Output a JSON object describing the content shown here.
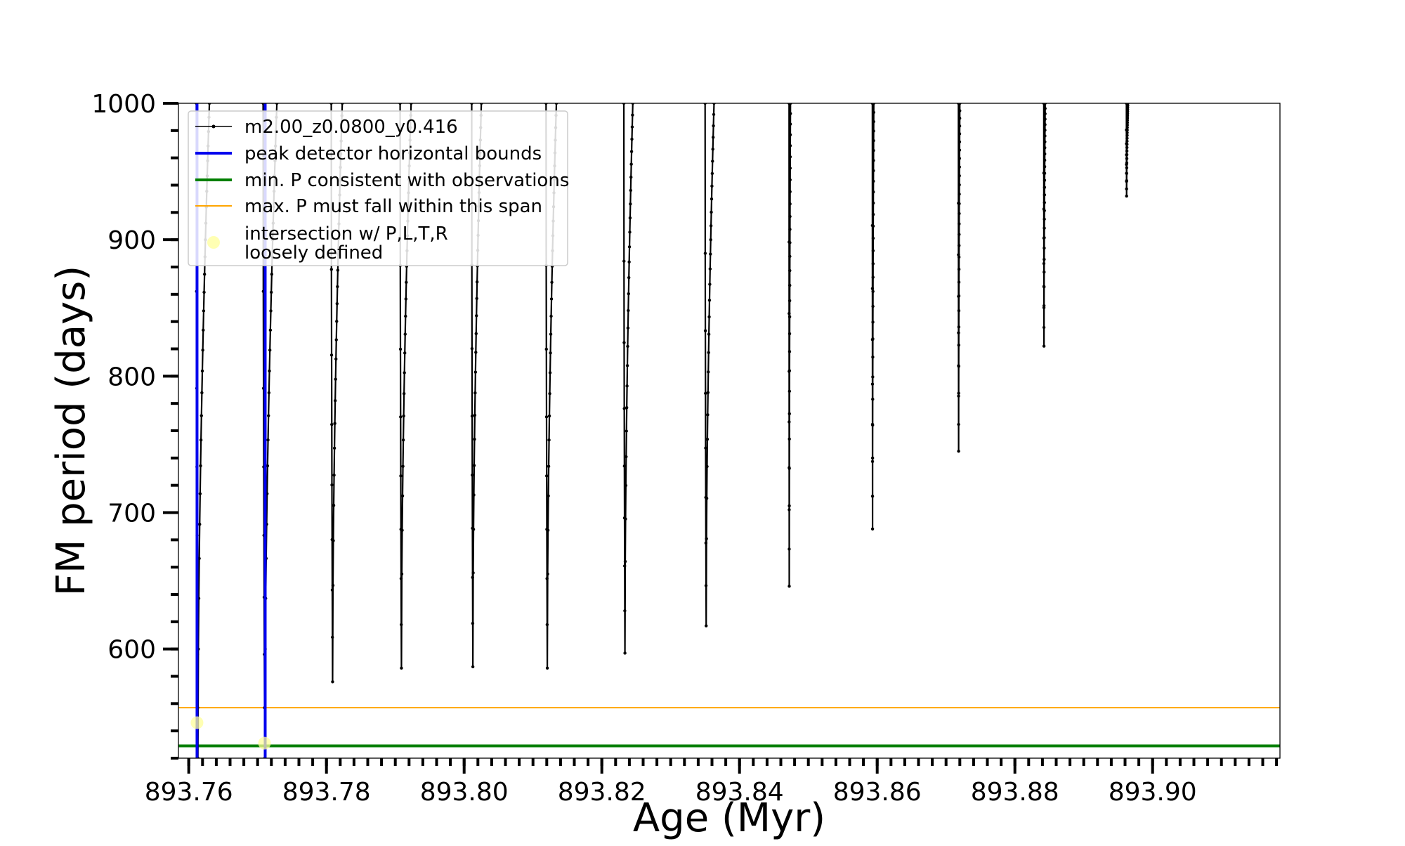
{
  "chart_data": {
    "type": "line",
    "title": "",
    "xlabel": "Age (Myr)",
    "ylabel": "FM period (days)",
    "xlim": [
      893.7585,
      893.9185
    ],
    "ylim": [
      520,
      1000
    ],
    "x_ticks": [
      893.76,
      893.78,
      893.8,
      893.82,
      893.84,
      893.86,
      893.88,
      893.9
    ],
    "x_tick_labels": [
      "893.76",
      "893.78",
      "893.80",
      "893.82",
      "893.84",
      "893.86",
      "893.88",
      "893.90"
    ],
    "y_ticks": [
      600,
      700,
      800,
      900,
      1000
    ],
    "y_tick_labels": [
      "600",
      "700",
      "800",
      "900",
      "1000"
    ],
    "x_minor_step": 0.002,
    "y_minor_step": 20,
    "grid": false,
    "legend_position": "top-left",
    "series": [
      {
        "name": "m2.00_z0.0800_y0.416",
        "color": "#000000",
        "marker": "dot",
        "pulses": [
          {
            "x_start": 893.7611,
            "x_end": 893.763,
            "y_min": 520,
            "y_top_left": 1000,
            "y_top_right": 1000
          },
          {
            "x_start": 893.7708,
            "x_end": 893.7728,
            "y_min": 520,
            "y_top_left": 1000,
            "y_top_right": 1000
          },
          {
            "x_start": 893.7807,
            "x_end": 893.7823,
            "y_min": 576,
            "y_top_left": 1000,
            "y_top_right": 1000
          },
          {
            "x_start": 893.7907,
            "x_end": 893.7923,
            "y_min": 586,
            "y_top_left": 1000,
            "y_top_right": 1000
          },
          {
            "x_start": 893.8011,
            "x_end": 893.8025,
            "y_min": 587,
            "y_top_left": 1000,
            "y_top_right": 1000
          },
          {
            "x_start": 893.8119,
            "x_end": 893.8134,
            "y_min": 586,
            "y_top_left": 1000,
            "y_top_right": 1000
          },
          {
            "x_start": 893.8232,
            "x_end": 893.8245,
            "y_min": 597,
            "y_top_left": 1000,
            "y_top_right": 1000
          },
          {
            "x_start": 893.835,
            "x_end": 893.8363,
            "y_min": 617,
            "y_top_left": 1000,
            "y_top_right": 1000
          },
          {
            "x_start": 893.8472,
            "x_end": 893.8474,
            "y_min": 646,
            "y_top_left": 1000,
            "y_top_right": 1000
          },
          {
            "x_start": 893.8593,
            "x_end": 893.8595,
            "y_min": 688,
            "y_top_left": 1000,
            "y_top_right": 1000
          },
          {
            "x_start": 893.8718,
            "x_end": 893.872,
            "y_min": 745,
            "y_top_left": 1000,
            "y_top_right": 1000
          },
          {
            "x_start": 893.8842,
            "x_end": 893.8844,
            "y_min": 822,
            "y_top_left": 1000,
            "y_top_right": 1000
          },
          {
            "x_start": 893.8962,
            "x_end": 893.8964,
            "y_min": 932,
            "y_top_left": 1000,
            "y_top_right": 1000
          }
        ]
      },
      {
        "name": "peak detector horizontal bounds",
        "color": "#0000ee",
        "vertical_lines_x": [
          893.7612,
          893.7711
        ]
      },
      {
        "name": "min. P consistent with observations",
        "color": "#007f00",
        "horizontal_line_y": 529
      },
      {
        "name": "max. P must fall within this span",
        "color": "#ffa500",
        "horizontal_line_y": 557
      },
      {
        "name": "intersection w/ P,L,T,R\nloosely defined",
        "color": "#ffff99",
        "points": [
          {
            "x": 893.7612,
            "y": 546
          },
          {
            "x": 893.771,
            "y": 531
          }
        ]
      }
    ]
  }
}
